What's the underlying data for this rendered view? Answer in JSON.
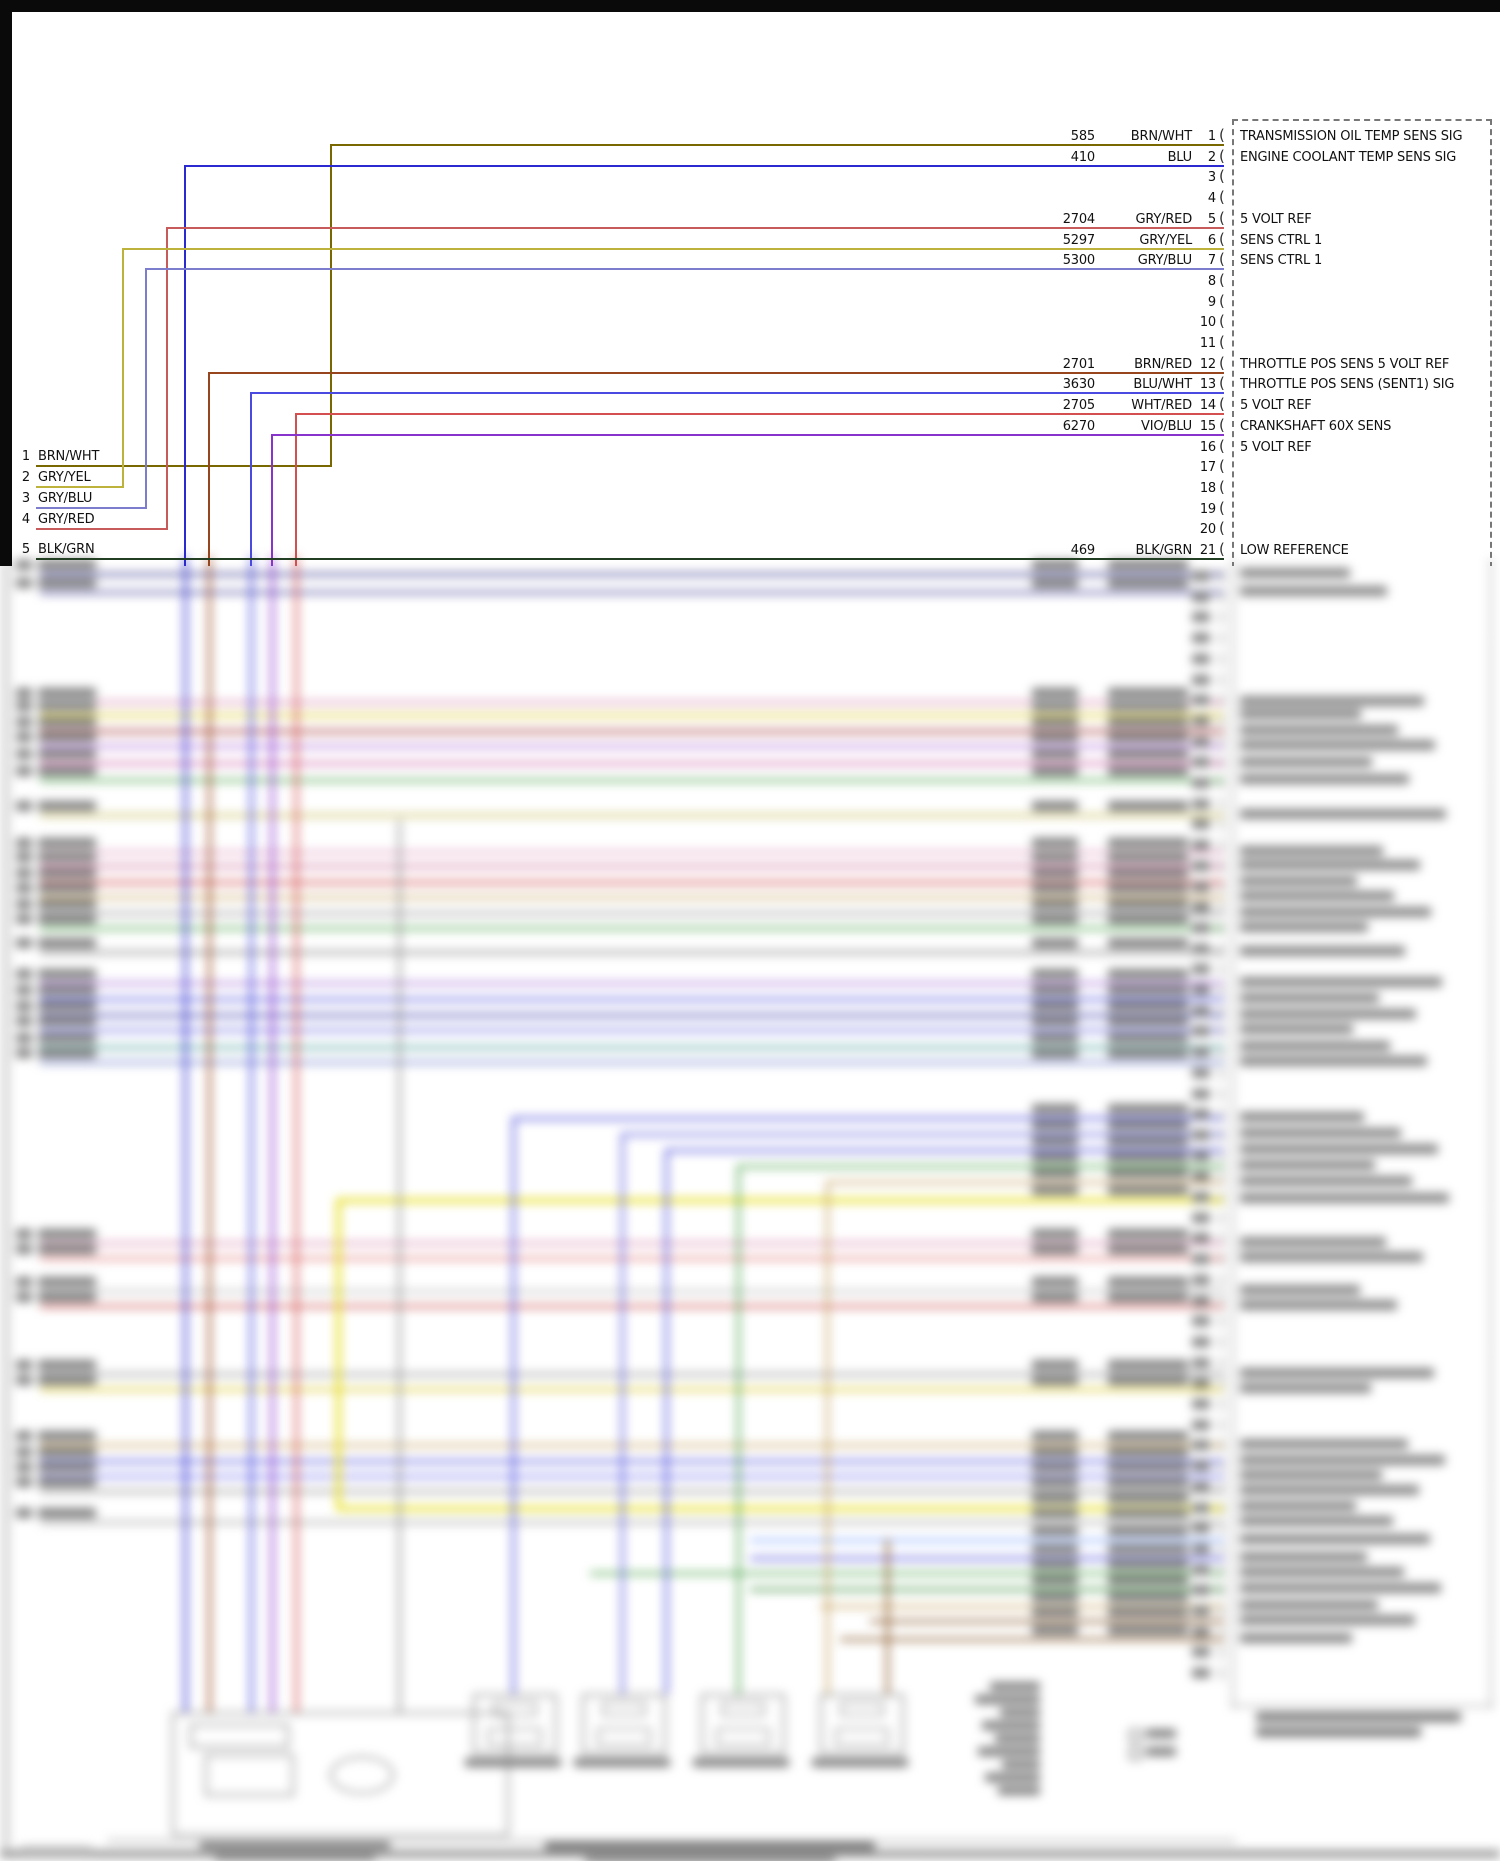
{
  "page": {
    "bracket": "("
  },
  "connector": {
    "pins": [
      {
        "n": "1",
        "wire": "585",
        "color": "BRN/WHT",
        "label": "TRANSMISSION OIL TEMP SENS SIG"
      },
      {
        "n": "2",
        "wire": "410",
        "color": "BLU",
        "label": "ENGINE COOLANT TEMP SENS SIG"
      },
      {
        "n": "3"
      },
      {
        "n": "4"
      },
      {
        "n": "5",
        "wire": "2704",
        "color": "GRY/RED",
        "label": "5 VOLT REF"
      },
      {
        "n": "6",
        "wire": "5297",
        "color": "GRY/YEL",
        "label": "SENS CTRL 1"
      },
      {
        "n": "7",
        "wire": "5300",
        "color": "GRY/BLU",
        "label": "SENS CTRL 1"
      },
      {
        "n": "8"
      },
      {
        "n": "9"
      },
      {
        "n": "10"
      },
      {
        "n": "11"
      },
      {
        "n": "12",
        "wire": "2701",
        "color": "BRN/RED",
        "label": "THROTTLE POS SENS 5 VOLT REF"
      },
      {
        "n": "13",
        "wire": "3630",
        "color": "BLU/WHT",
        "label": "THROTTLE POS SENS (SENT1) SIG"
      },
      {
        "n": "14",
        "wire": "2705",
        "color": "WHT/RED",
        "label": "5 VOLT REF"
      },
      {
        "n": "15",
        "wire": "6270",
        "color": "VIO/BLU",
        "label": "CRANKSHAFT 60X SENS"
      },
      {
        "n": "16",
        "label": "5 VOLT REF"
      },
      {
        "n": "17"
      },
      {
        "n": "18"
      },
      {
        "n": "19"
      },
      {
        "n": "20"
      },
      {
        "n": "21",
        "wire": "469",
        "color": "BLK/GRN",
        "label": "LOW REFERENCE"
      }
    ]
  },
  "left_terminals": [
    {
      "n": "1",
      "color": "BRN/WHT"
    },
    {
      "n": "2",
      "color": "GRY/YEL"
    },
    {
      "n": "3",
      "color": "GRY/BLU"
    },
    {
      "n": "4",
      "color": "GRY/RED"
    },
    {
      "n": "5",
      "color": "BLK/GRN"
    }
  ],
  "wire_colors": {
    "BRN/WHT": "#796800",
    "BLU": "#2a2ad0",
    "GRY/RED": "#C75B5B",
    "GRY/YEL": "#BDB23C",
    "GRY/BLU": "#7D7DCE",
    "BRN/RED": "#96451c",
    "BLU/WHT": "#4A4AE0",
    "WHT/RED": "#D45050",
    "VIO/BLU": "#8833CC",
    "BLK/GRN": "#233F23"
  }
}
